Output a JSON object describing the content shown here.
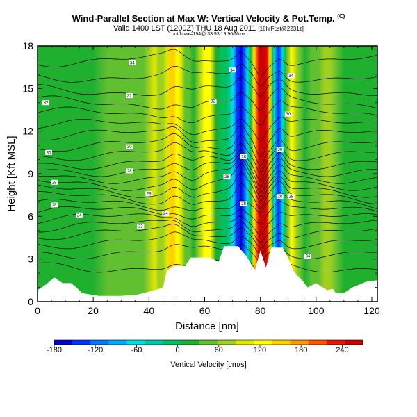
{
  "header": {
    "title": "Wind-Parallel Section at Max W: Vertical Velocity & Pot.Temp.",
    "title_mark": "(C)",
    "valid_main": "Valid 1400 LST (1200Z) THU 18 Aug 2011",
    "valid_bracket": "[18hrFcst@2231z]",
    "location": "bot/lmax=194@ 33.93,19.96/Mrna"
  },
  "chart_data": {
    "type": "heatmap",
    "title": "Wind-Parallel Section at Max W: Vertical Velocity & Pot.Temp.",
    "xlabel": "Distance [nm]",
    "ylabel": "Height [Kft MSL]",
    "xlim": [
      0,
      122
    ],
    "ylim": [
      0,
      18
    ],
    "xticks": [
      "0",
      "20",
      "40",
      "60",
      "80",
      "100",
      "120"
    ],
    "yticks": [
      "0",
      "3",
      "6",
      "9",
      "12",
      "15",
      "18"
    ],
    "colorbar": {
      "label": "Vertical Velocity [cm/s]",
      "range": [
        -180,
        270
      ],
      "ticks": [
        "-180",
        "-120",
        "-60",
        "0",
        "60",
        "120",
        "180",
        "240"
      ],
      "colors": [
        "#0000cc",
        "#0033ff",
        "#0077ff",
        "#00aaff",
        "#00dddd",
        "#00c8a0",
        "#00c060",
        "#20b030",
        "#60c030",
        "#a0d020",
        "#e0e800",
        "#ffff00",
        "#ffd000",
        "#ff9900",
        "#ff5500",
        "#ee1100",
        "#cc0000"
      ]
    },
    "w_profile": [
      [
        0,
        25
      ],
      [
        10,
        22
      ],
      [
        20,
        30
      ],
      [
        30,
        45
      ],
      [
        38,
        55
      ],
      [
        42,
        85
      ],
      [
        45,
        60
      ],
      [
        48,
        150
      ],
      [
        50,
        135
      ],
      [
        53,
        55
      ],
      [
        56,
        25
      ],
      [
        60,
        135
      ],
      [
        62,
        125
      ],
      [
        64,
        30
      ],
      [
        66,
        5
      ],
      [
        68,
        -20
      ],
      [
        70,
        -70
      ],
      [
        71.5,
        -130
      ],
      [
        73,
        -165
      ],
      [
        74.5,
        -110
      ],
      [
        76,
        -30
      ],
      [
        77,
        40
      ],
      [
        78,
        150
      ],
      [
        79.5,
        255
      ],
      [
        81,
        270
      ],
      [
        82.5,
        230
      ],
      [
        84,
        70
      ],
      [
        85,
        -70
      ],
      [
        86.5,
        -150
      ],
      [
        88,
        -55
      ],
      [
        89.5,
        40
      ],
      [
        91,
        115
      ],
      [
        93,
        60
      ],
      [
        96,
        20
      ],
      [
        101,
        45
      ],
      [
        105,
        80
      ],
      [
        110,
        30
      ],
      [
        115,
        20
      ],
      [
        122,
        15
      ]
    ],
    "terrain": [
      [
        0,
        0.8
      ],
      [
        3,
        1.2
      ],
      [
        6,
        1.7
      ],
      [
        9,
        1.3
      ],
      [
        12,
        1.3
      ],
      [
        14,
        1.0
      ],
      [
        16,
        0.6
      ],
      [
        22,
        0.4
      ],
      [
        30,
        0.4
      ],
      [
        36,
        0.5
      ],
      [
        42,
        0.8
      ],
      [
        45,
        1.0
      ],
      [
        46.5,
        2.2
      ],
      [
        49,
        2.5
      ],
      [
        53,
        2.5
      ],
      [
        55,
        3.1
      ],
      [
        60,
        3.1
      ],
      [
        62,
        3.1
      ],
      [
        65,
        2.8
      ],
      [
        67,
        3.9
      ],
      [
        72,
        3.9
      ],
      [
        75,
        3.2
      ],
      [
        78,
        2.2
      ],
      [
        80,
        3.6
      ],
      [
        82,
        2.4
      ],
      [
        84,
        3.8
      ],
      [
        88,
        3.8
      ],
      [
        90,
        3.1
      ],
      [
        92,
        2.1
      ],
      [
        95,
        1.5
      ],
      [
        97,
        1.0
      ],
      [
        100,
        1.3
      ],
      [
        104,
        0.8
      ],
      [
        106,
        0.9
      ],
      [
        107,
        0.6
      ],
      [
        110,
        0.6
      ],
      [
        113,
        1.0
      ],
      [
        118,
        1.4
      ],
      [
        122,
        1.5
      ]
    ],
    "theta_contours": [
      2.5,
      3.5,
      4.2,
      4.8,
      5.3,
      5.8,
      6.3,
      6.8,
      7.3,
      7.8,
      8.3,
      8.8,
      9.3,
      9.8,
      10.4,
      11.0,
      11.7,
      12.4,
      13.2,
      14.0,
      14.9,
      15.9,
      17.0
    ],
    "theta_labels": [
      {
        "text": "34",
        "x": 34,
        "y": 16.8
      },
      {
        "text": "34",
        "x": 70,
        "y": 16.3
      },
      {
        "text": "34",
        "x": 91,
        "y": 15.9
      },
      {
        "text": "32",
        "x": 33,
        "y": 14.5
      },
      {
        "text": "32",
        "x": 63,
        "y": 14.1
      },
      {
        "text": "32",
        "x": 3,
        "y": 14.0
      },
      {
        "text": "30",
        "x": 90,
        "y": 13.2
      },
      {
        "text": "30",
        "x": 33,
        "y": 10.9
      },
      {
        "text": "30",
        "x": 4,
        "y": 10.5
      },
      {
        "text": "30",
        "x": 87,
        "y": 10.7
      },
      {
        "text": "28",
        "x": 33,
        "y": 9.2
      },
      {
        "text": "28",
        "x": 74,
        "y": 10.2
      },
      {
        "text": "28",
        "x": 6,
        "y": 8.4
      },
      {
        "text": "28",
        "x": 68,
        "y": 8.8
      },
      {
        "text": "28",
        "x": 40,
        "y": 7.6
      },
      {
        "text": "28",
        "x": 6,
        "y": 6.8
      },
      {
        "text": "28",
        "x": 74,
        "y": 6.9
      },
      {
        "text": "28",
        "x": 87,
        "y": 7.4
      },
      {
        "text": "28",
        "x": 91,
        "y": 7.4
      },
      {
        "text": "24",
        "x": 15,
        "y": 6.1
      },
      {
        "text": "24",
        "x": 46,
        "y": 6.2
      },
      {
        "text": "22",
        "x": 37,
        "y": 5.3
      },
      {
        "text": "34",
        "x": 97,
        "y": 3.2
      }
    ]
  }
}
